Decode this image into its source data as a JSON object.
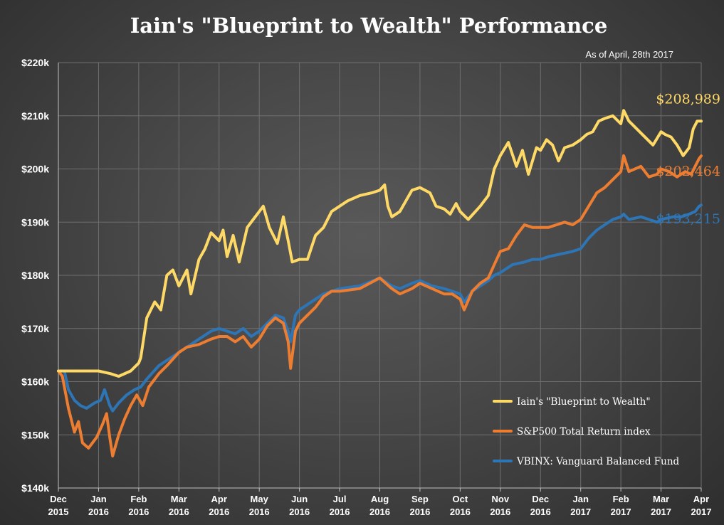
{
  "chart_data": {
    "type": "line",
    "title": "Iain's \"Blueprint to Wealth\" Performance",
    "subtitle": "As of April, 28th 2017",
    "y_ticks": [
      "$140k",
      "$150k",
      "$160k",
      "$170k",
      "$180k",
      "$190k",
      "$200k",
      "$210k",
      "$220k"
    ],
    "ylim": [
      140000,
      220000
    ],
    "x_ticks": [
      {
        "month": "Dec",
        "year": "2015"
      },
      {
        "month": "Jan",
        "year": "2016"
      },
      {
        "month": "Feb",
        "year": "2016"
      },
      {
        "month": "Mar",
        "year": "2016"
      },
      {
        "month": "Apr",
        "year": "2016"
      },
      {
        "month": "May",
        "year": "2016"
      },
      {
        "month": "Jun",
        "year": "2016"
      },
      {
        "month": "Jul",
        "year": "2016"
      },
      {
        "month": "Aug",
        "year": "2016"
      },
      {
        "month": "Sep",
        "year": "2016"
      },
      {
        "month": "Oct",
        "year": "2016"
      },
      {
        "month": "Nov",
        "year": "2016"
      },
      {
        "month": "Dec",
        "year": "2016"
      },
      {
        "month": "Jan",
        "year": "2017"
      },
      {
        "month": "Feb",
        "year": "2017"
      },
      {
        "month": "Mar",
        "year": "2017"
      },
      {
        "month": "Apr",
        "year": "2017"
      }
    ],
    "grid": true,
    "legend_position": "bottom-right",
    "series": [
      {
        "name": "Iain's \"Blueprint to Wealth\"",
        "color": "#FFD966",
        "end_label": "$208,989",
        "points": [
          [
            0,
            162000
          ],
          [
            0.5,
            162000
          ],
          [
            1,
            162000
          ],
          [
            1.3,
            161500
          ],
          [
            1.5,
            161000
          ],
          [
            1.8,
            162000
          ],
          [
            2,
            163500
          ],
          [
            2.05,
            164500
          ],
          [
            2.2,
            172000
          ],
          [
            2.4,
            175000
          ],
          [
            2.55,
            173500
          ],
          [
            2.7,
            180000
          ],
          [
            2.85,
            181000
          ],
          [
            3,
            178000
          ],
          [
            3.2,
            181000
          ],
          [
            3.3,
            176500
          ],
          [
            3.5,
            183000
          ],
          [
            3.65,
            185000
          ],
          [
            3.8,
            188000
          ],
          [
            4,
            186500
          ],
          [
            4.1,
            188500
          ],
          [
            4.2,
            183500
          ],
          [
            4.35,
            187500
          ],
          [
            4.5,
            182500
          ],
          [
            4.7,
            189000
          ],
          [
            4.85,
            190500
          ],
          [
            5,
            192000
          ],
          [
            5.1,
            193000
          ],
          [
            5.25,
            189000
          ],
          [
            5.45,
            186000
          ],
          [
            5.6,
            191000
          ],
          [
            5.72,
            186500
          ],
          [
            5.82,
            182500
          ],
          [
            6,
            183000
          ],
          [
            6.2,
            183000
          ],
          [
            6.4,
            187500
          ],
          [
            6.6,
            189000
          ],
          [
            6.8,
            192000
          ],
          [
            7,
            193000
          ],
          [
            7.2,
            194000
          ],
          [
            7.5,
            195000
          ],
          [
            7.8,
            195500
          ],
          [
            8,
            196000
          ],
          [
            8.12,
            197000
          ],
          [
            8.2,
            193000
          ],
          [
            8.3,
            191000
          ],
          [
            8.5,
            192000
          ],
          [
            8.8,
            196000
          ],
          [
            9,
            196500
          ],
          [
            9.25,
            195500
          ],
          [
            9.4,
            193000
          ],
          [
            9.6,
            192500
          ],
          [
            9.75,
            191500
          ],
          [
            9.9,
            193500
          ],
          [
            10,
            192000
          ],
          [
            10.2,
            190500
          ],
          [
            10.5,
            193000
          ],
          [
            10.7,
            195000
          ],
          [
            10.85,
            200000
          ],
          [
            11,
            202500
          ],
          [
            11.2,
            205000
          ],
          [
            11.4,
            200500
          ],
          [
            11.55,
            203500
          ],
          [
            11.7,
            199000
          ],
          [
            11.9,
            204000
          ],
          [
            12,
            203500
          ],
          [
            12.15,
            205500
          ],
          [
            12.3,
            204500
          ],
          [
            12.45,
            201500
          ],
          [
            12.6,
            204000
          ],
          [
            12.8,
            204500
          ],
          [
            13,
            205500
          ],
          [
            13.15,
            206500
          ],
          [
            13.3,
            207000
          ],
          [
            13.45,
            209000
          ],
          [
            13.6,
            209500
          ],
          [
            13.8,
            210000
          ],
          [
            14,
            208500
          ],
          [
            14.07,
            211000
          ],
          [
            14.2,
            209000
          ],
          [
            14.4,
            207500
          ],
          [
            14.6,
            206000
          ],
          [
            14.8,
            204500
          ],
          [
            15,
            207000
          ],
          [
            15.1,
            206500
          ],
          [
            15.25,
            206000
          ],
          [
            15.4,
            204500
          ],
          [
            15.55,
            202500
          ],
          [
            15.7,
            204000
          ],
          [
            15.8,
            207500
          ],
          [
            15.9,
            209000
          ],
          [
            16,
            208989
          ]
        ]
      },
      {
        "name": "S&P500 Total Return index",
        "color": "#ED7D31",
        "end_label": "$202,464",
        "points": [
          [
            0,
            162000
          ],
          [
            0.1,
            161000
          ],
          [
            0.25,
            155000
          ],
          [
            0.4,
            150500
          ],
          [
            0.5,
            152500
          ],
          [
            0.6,
            148500
          ],
          [
            0.75,
            147500
          ],
          [
            0.95,
            149500
          ],
          [
            1.1,
            152000
          ],
          [
            1.2,
            154000
          ],
          [
            1.28,
            149500
          ],
          [
            1.35,
            146000
          ],
          [
            1.5,
            150000
          ],
          [
            1.65,
            153000
          ],
          [
            1.8,
            155500
          ],
          [
            1.95,
            157500
          ],
          [
            2.1,
            155500
          ],
          [
            2.25,
            159000
          ],
          [
            2.5,
            161500
          ],
          [
            2.7,
            163000
          ],
          [
            3,
            165500
          ],
          [
            3.2,
            166500
          ],
          [
            3.5,
            167000
          ],
          [
            3.8,
            168000
          ],
          [
            4,
            168500
          ],
          [
            4.2,
            168500
          ],
          [
            4.4,
            167500
          ],
          [
            4.6,
            168500
          ],
          [
            4.8,
            166500
          ],
          [
            5,
            168000
          ],
          [
            5.2,
            170500
          ],
          [
            5.4,
            172000
          ],
          [
            5.6,
            171000
          ],
          [
            5.72,
            167500
          ],
          [
            5.78,
            162500
          ],
          [
            5.9,
            169500
          ],
          [
            6,
            171000
          ],
          [
            6.2,
            172500
          ],
          [
            6.4,
            174000
          ],
          [
            6.6,
            176000
          ],
          [
            6.8,
            177000
          ],
          [
            7,
            177000
          ],
          [
            7.5,
            177500
          ],
          [
            8,
            179500
          ],
          [
            8.3,
            177500
          ],
          [
            8.5,
            176500
          ],
          [
            8.8,
            177500
          ],
          [
            9,
            178500
          ],
          [
            9.3,
            177500
          ],
          [
            9.6,
            176500
          ],
          [
            9.8,
            176500
          ],
          [
            10,
            175500
          ],
          [
            10.1,
            173500
          ],
          [
            10.3,
            177000
          ],
          [
            10.5,
            178500
          ],
          [
            10.7,
            179500
          ],
          [
            10.85,
            182000
          ],
          [
            11,
            184500
          ],
          [
            11.2,
            185000
          ],
          [
            11.4,
            187500
          ],
          [
            11.6,
            189500
          ],
          [
            11.8,
            189000
          ],
          [
            12,
            189000
          ],
          [
            12.2,
            189000
          ],
          [
            12.4,
            189500
          ],
          [
            12.6,
            190000
          ],
          [
            12.8,
            189500
          ],
          [
            13,
            190500
          ],
          [
            13.2,
            193000
          ],
          [
            13.4,
            195500
          ],
          [
            13.6,
            196500
          ],
          [
            13.8,
            198000
          ],
          [
            14,
            199500
          ],
          [
            14.07,
            202500
          ],
          [
            14.2,
            199500
          ],
          [
            14.5,
            200500
          ],
          [
            14.7,
            198500
          ],
          [
            14.9,
            199000
          ],
          [
            15,
            200000
          ],
          [
            15.2,
            199500
          ],
          [
            15.4,
            198500
          ],
          [
            15.6,
            199500
          ],
          [
            15.75,
            199000
          ],
          [
            15.85,
            200500
          ],
          [
            15.95,
            202000
          ],
          [
            16,
            202464
          ]
        ]
      },
      {
        "name": "VBINX: Vanguard Balanced Fund",
        "color": "#2E75B6",
        "end_label": "$193,215",
        "points": [
          [
            0,
            162000
          ],
          [
            0.15,
            162000
          ],
          [
            0.25,
            158500
          ],
          [
            0.4,
            156500
          ],
          [
            0.55,
            155500
          ],
          [
            0.7,
            155000
          ],
          [
            0.9,
            156000
          ],
          [
            1.05,
            156500
          ],
          [
            1.15,
            158500
          ],
          [
            1.28,
            155500
          ],
          [
            1.35,
            154500
          ],
          [
            1.5,
            156000
          ],
          [
            1.7,
            157500
          ],
          [
            1.9,
            158500
          ],
          [
            2.05,
            159000
          ],
          [
            2.2,
            160500
          ],
          [
            2.5,
            163000
          ],
          [
            2.7,
            164000
          ],
          [
            3,
            165500
          ],
          [
            3.2,
            166500
          ],
          [
            3.5,
            168000
          ],
          [
            3.8,
            169500
          ],
          [
            4,
            170000
          ],
          [
            4.2,
            169500
          ],
          [
            4.4,
            169000
          ],
          [
            4.6,
            170000
          ],
          [
            4.8,
            168500
          ],
          [
            5,
            169500
          ],
          [
            5.2,
            171000
          ],
          [
            5.4,
            172500
          ],
          [
            5.6,
            172000
          ],
          [
            5.72,
            169500
          ],
          [
            5.78,
            167500
          ],
          [
            5.9,
            172500
          ],
          [
            6,
            173500
          ],
          [
            6.2,
            174500
          ],
          [
            6.4,
            175500
          ],
          [
            6.6,
            176500
          ],
          [
            6.8,
            177000
          ],
          [
            7,
            177500
          ],
          [
            7.5,
            178000
          ],
          [
            8,
            179500
          ],
          [
            8.3,
            178000
          ],
          [
            8.5,
            177500
          ],
          [
            8.8,
            178500
          ],
          [
            9,
            179000
          ],
          [
            9.3,
            178000
          ],
          [
            9.6,
            177500
          ],
          [
            9.8,
            177000
          ],
          [
            10,
            176500
          ],
          [
            10.1,
            175000
          ],
          [
            10.3,
            177000
          ],
          [
            10.5,
            178000
          ],
          [
            10.7,
            179000
          ],
          [
            10.85,
            180000
          ],
          [
            11,
            180500
          ],
          [
            11.3,
            182000
          ],
          [
            11.6,
            182500
          ],
          [
            11.8,
            183000
          ],
          [
            12,
            183000
          ],
          [
            12.2,
            183500
          ],
          [
            12.5,
            184000
          ],
          [
            12.8,
            184500
          ],
          [
            13,
            185000
          ],
          [
            13.2,
            187000
          ],
          [
            13.4,
            188500
          ],
          [
            13.6,
            189500
          ],
          [
            13.8,
            190500
          ],
          [
            14,
            191000
          ],
          [
            14.07,
            191500
          ],
          [
            14.2,
            190500
          ],
          [
            14.5,
            191000
          ],
          [
            14.7,
            190500
          ],
          [
            14.9,
            190000
          ],
          [
            15,
            190500
          ],
          [
            15.3,
            191000
          ],
          [
            15.5,
            191000
          ],
          [
            15.7,
            191500
          ],
          [
            15.85,
            192000
          ],
          [
            15.95,
            193000
          ],
          [
            16,
            193215
          ]
        ]
      }
    ]
  }
}
